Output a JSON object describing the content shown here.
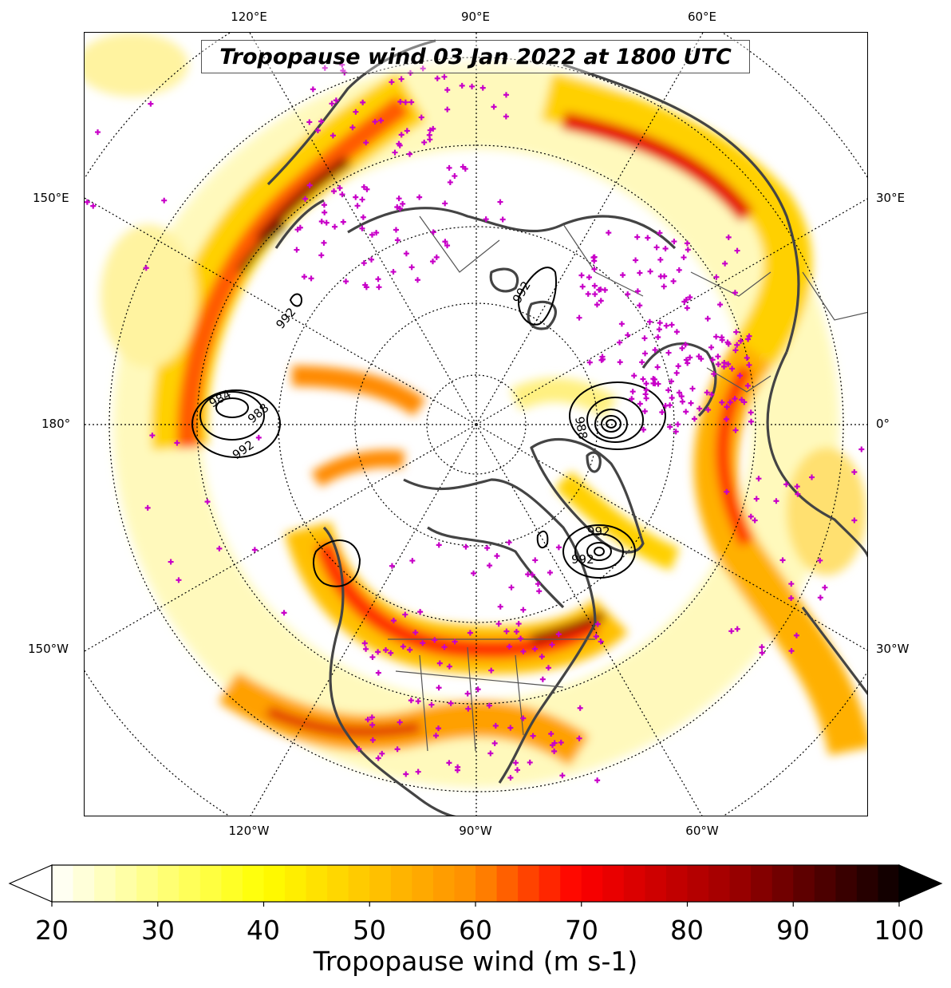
{
  "title": "Tropopause wind 03 Jan 2022 at 1800 UTC",
  "top_labels": [
    "120°E",
    "90°E",
    "60°E"
  ],
  "bottom_labels": [
    "120°W",
    "90°W",
    "60°W"
  ],
  "left_labels": [
    "150°E",
    "180°",
    "150°W"
  ],
  "right_labels": [
    "30°E",
    "0°",
    "30°W"
  ],
  "colorbar": {
    "label": "Tropopause wind (m s-1)",
    "ticks": [
      "20",
      "30",
      "40",
      "50",
      "60",
      "70",
      "80",
      "90",
      "100"
    ],
    "min": 20,
    "max": 100,
    "extend": "both",
    "colormap": "hot_r"
  },
  "contours": {
    "color": "#000000",
    "labels": [
      "992",
      "988",
      "984",
      "992",
      "992",
      "992",
      "988",
      "992"
    ]
  },
  "colors": {
    "coastline": "#444444",
    "gridline": "#000000",
    "station_marker": "#c800c8"
  }
}
